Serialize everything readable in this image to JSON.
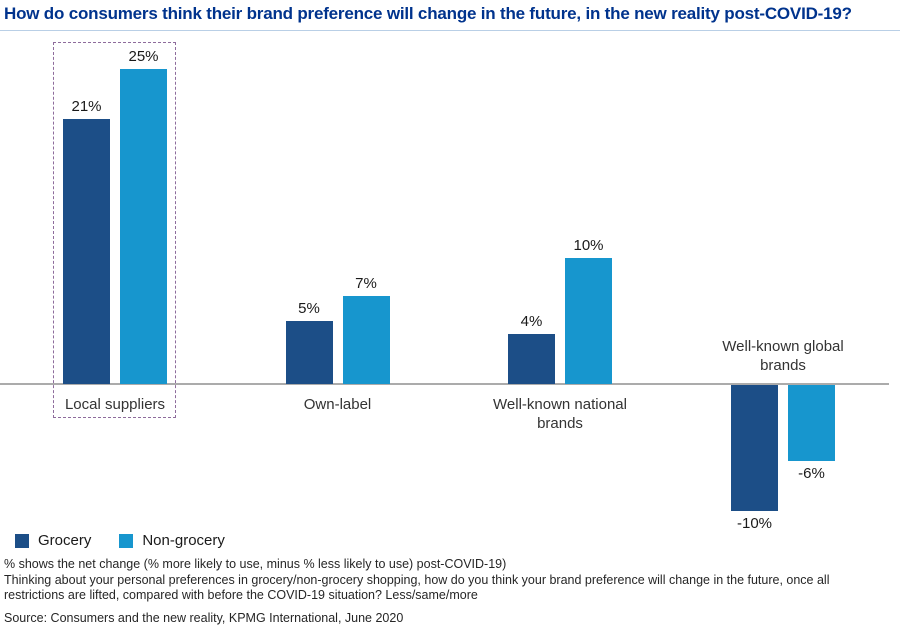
{
  "page": {
    "title": "How do consumers think their brand preference will change in the future, in the new reality post-COVID-19?"
  },
  "chart_data": {
    "type": "bar",
    "title": "How do consumers think their brand preference will change in the future, in the new reality post-COVID-19?",
    "categories": [
      "Local suppliers",
      "Own-label",
      "Well-known national brands",
      "Well-known global brands"
    ],
    "series": [
      {
        "name": "Grocery",
        "color": "#1C4E87",
        "values": [
          21,
          5,
          4,
          -10
        ]
      },
      {
        "name": "Non-grocery",
        "color": "#1796CE",
        "values": [
          25,
          7,
          10,
          -6
        ]
      }
    ],
    "unit": "%",
    "value_label_format": "signed percent, e.g. 21%, -10%",
    "ylim": [
      -12,
      27
    ],
    "axis_style": "zero baseline only, no y-axis, no gridlines",
    "highlighted_category": "Local suppliers",
    "highlight_style": "dashed purple box",
    "legend_position": "bottom-left"
  },
  "legend": {
    "items": [
      {
        "label": "Grocery",
        "color": "#1C4E87"
      },
      {
        "label": "Non-grocery",
        "color": "#1796CE"
      }
    ]
  },
  "footnotes": {
    "note1": "% shows the net change (% more likely to use, minus % less likely to use) post-COVID-19)",
    "note2": "Thinking about your personal preferences in grocery/non-grocery shopping, how do you think your brand preference will change in the future, once all restrictions are lifted, compared with before the COVID-19 situation? Less/same/more",
    "source": "Source: Consumers and the new reality, KPMG International, June 2020"
  },
  "colors": {
    "title": "#00338D",
    "grocery_bar": "#1C4E87",
    "non_grocery_bar": "#1796CE",
    "zero_line": "#ababab",
    "highlight_box": "#8E6C9C",
    "title_rule": "#b9cfe6"
  }
}
